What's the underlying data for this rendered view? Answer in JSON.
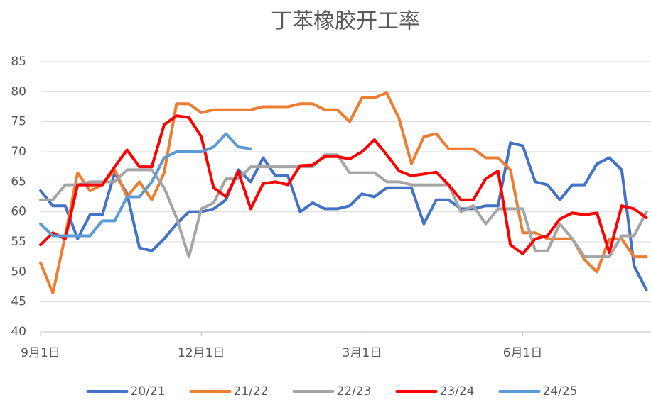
{
  "chart_data": {
    "type": "line",
    "title": "丁苯橡胶开工率",
    "categories": [
      "9月1日",
      null,
      null,
      null,
      null,
      null,
      null,
      null,
      null,
      null,
      null,
      null,
      null,
      "12月1日",
      null,
      null,
      null,
      null,
      null,
      null,
      null,
      null,
      null,
      null,
      null,
      null,
      "3月1日",
      null,
      null,
      null,
      null,
      null,
      null,
      null,
      null,
      null,
      null,
      null,
      null,
      "6月1日",
      null,
      null,
      null,
      null,
      null,
      null,
      null,
      null,
      null,
      null
    ],
    "ylim": [
      40,
      85
    ],
    "yticks": [
      40,
      45,
      50,
      55,
      60,
      65,
      70,
      75,
      80,
      85
    ],
    "grid": true,
    "legend": "bottom",
    "series": [
      {
        "name": "20/21",
        "color": "#4472c4",
        "values": [
          63.5,
          61,
          61,
          55.5,
          59.5,
          59.5,
          66.5,
          63,
          54,
          53.5,
          55.5,
          58,
          60,
          60,
          60.5,
          62,
          67,
          65,
          69,
          66,
          66,
          60,
          61.5,
          60.5,
          60.5,
          61,
          63,
          62.5,
          64,
          64,
          64,
          58,
          62,
          62,
          60.5,
          60.5,
          61,
          61,
          71.5,
          71,
          65,
          64.5,
          62,
          64.5,
          64.5,
          68,
          69,
          67,
          51,
          47
        ]
      },
      {
        "name": "21/22",
        "color": "#ed7d31",
        "values": [
          51.5,
          46.5,
          56,
          66.5,
          63.5,
          64.5,
          67,
          62.5,
          65,
          62,
          66.5,
          78,
          78,
          76.5,
          77,
          77,
          77,
          77,
          77.5,
          77.5,
          77.5,
          78,
          78,
          77,
          77,
          75,
          79,
          79,
          79.8,
          75.5,
          68,
          72.5,
          73,
          70.5,
          70.5,
          70.5,
          69,
          69,
          67,
          56.5,
          56.5,
          55.5,
          55.5,
          55.5,
          52,
          50,
          55.5,
          55.5,
          52.5,
          52.5
        ]
      },
      {
        "name": "22/23",
        "color": "#a5a5a5",
        "values": [
          62,
          62,
          64.5,
          64.5,
          65,
          65,
          65,
          67,
          67,
          67,
          64,
          59,
          52.5,
          60.5,
          61.5,
          65.5,
          65.5,
          67.5,
          67.5,
          67.5,
          67.5,
          67.5,
          67.5,
          69.5,
          69.5,
          66.5,
          66.5,
          66.5,
          65,
          65,
          64.5,
          64.5,
          64.5,
          64.5,
          60,
          61,
          58,
          60.5,
          60.5,
          60.5,
          53.5,
          53.5,
          58,
          55.5,
          52.5,
          52.5,
          52.5,
          56,
          56,
          60
        ]
      },
      {
        "name": "23/24",
        "color": "#ff0000",
        "values": [
          54.5,
          56.5,
          55.5,
          64.5,
          64.5,
          64.5,
          67.5,
          70.3,
          67.5,
          67.5,
          74.5,
          76,
          75.7,
          72.5,
          64,
          62.5,
          66.7,
          60.5,
          64.7,
          65,
          64.5,
          67.7,
          67.8,
          69.2,
          69.2,
          68.8,
          70,
          72,
          69.5,
          66.8,
          66,
          66.3,
          66.6,
          64.5,
          62,
          62,
          65.5,
          66.8,
          54.5,
          53,
          55.5,
          56,
          58.8,
          59.8,
          59.5,
          59.8,
          53.2,
          61,
          60.5,
          59
        ]
      },
      {
        "name": "24/25",
        "color": "#5b9bd5",
        "values": [
          58,
          56,
          56,
          56,
          56,
          58.5,
          58.5,
          62.5,
          62.5,
          65,
          69,
          70,
          70,
          70,
          70.8,
          73,
          70.8,
          70.5,
          null,
          null,
          null,
          null,
          null,
          null,
          null,
          null,
          null,
          null,
          null,
          null,
          null,
          null,
          null,
          null,
          null,
          null,
          null,
          null,
          null,
          null,
          null,
          null,
          null,
          null,
          null,
          null,
          null,
          null,
          null,
          null
        ]
      }
    ]
  }
}
